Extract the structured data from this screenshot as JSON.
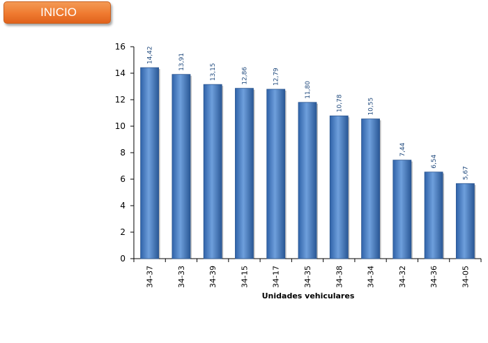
{
  "button": {
    "label": "INICIO"
  },
  "chart_data": {
    "type": "bar",
    "categories": [
      "34-37",
      "34-33",
      "34-39",
      "34-15",
      "34-17",
      "34-35",
      "34-38",
      "34-34",
      "34-32",
      "34-36",
      "34-05"
    ],
    "values": [
      14.42,
      13.91,
      13.15,
      12.86,
      12.79,
      11.8,
      10.78,
      10.55,
      7.44,
      6.54,
      5.67
    ],
    "data_labels": [
      "14,42",
      "13,91",
      "13,15",
      "12,86",
      "12,79",
      "11,80",
      "10,78",
      "10,55",
      "7,44",
      "6,54",
      "5,67"
    ],
    "title": "",
    "xlabel": "Unidades vehiculares",
    "ylabel": "",
    "ylim": [
      0,
      16
    ],
    "yticks": [
      "0",
      "2",
      "4",
      "6",
      "8",
      "10",
      "12",
      "14",
      "16"
    ],
    "grid": false,
    "legend": "none",
    "bar_color": "#4a7ebb"
  }
}
